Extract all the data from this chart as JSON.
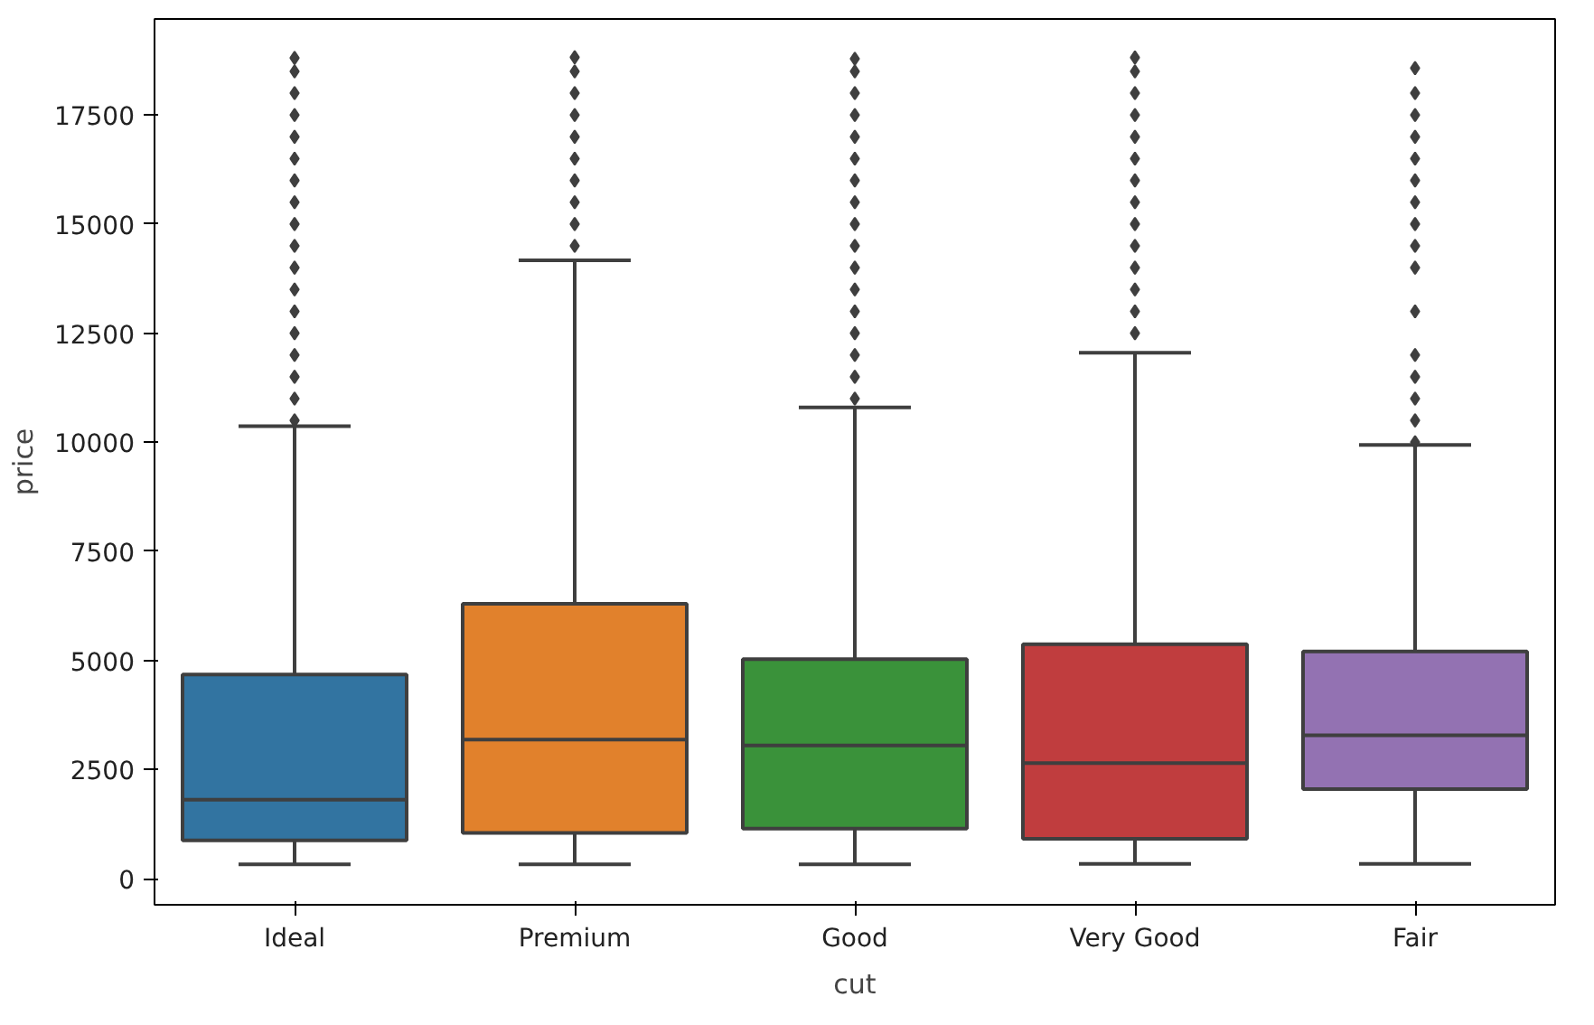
{
  "chart_data": {
    "type": "box",
    "xlabel": "cut",
    "ylabel": "price",
    "categories": [
      "Ideal",
      "Premium",
      "Good",
      "Very Good",
      "Fair"
    ],
    "colors": [
      "#3274a1",
      "#e1812c",
      "#3a923a",
      "#c03d3e",
      "#9372b2"
    ],
    "boxes": [
      {
        "low": 326,
        "q1": 878,
        "median": 1810,
        "q3": 4678,
        "high": 10370,
        "outliers": [
          10500,
          11000,
          11500,
          12000,
          12500,
          13000,
          13500,
          14000,
          14500,
          15000,
          15500,
          16000,
          16500,
          17000,
          17500,
          18000,
          18500,
          18806
        ]
      },
      {
        "low": 326,
        "q1": 1046,
        "median": 3185,
        "q3": 6296,
        "high": 14170,
        "outliers": [
          14500,
          15000,
          15500,
          16000,
          16500,
          17000,
          17500,
          18000,
          18500,
          18823
        ]
      },
      {
        "low": 327,
        "q1": 1145,
        "median": 3050,
        "q3": 5028,
        "high": 10800,
        "outliers": [
          11000,
          11500,
          12000,
          12500,
          13000,
          13500,
          14000,
          14500,
          15000,
          15500,
          16000,
          16500,
          17000,
          17500,
          18000,
          18500,
          18788
        ]
      },
      {
        "low": 336,
        "q1": 912,
        "median": 2648,
        "q3": 5373,
        "high": 12050,
        "outliers": [
          12500,
          13000,
          13500,
          14000,
          14500,
          15000,
          15500,
          16000,
          16500,
          17000,
          17500,
          18000,
          18500,
          18818
        ]
      },
      {
        "low": 337,
        "q1": 2050,
        "median": 3282,
        "q3": 5206,
        "high": 9940,
        "outliers": [
          10000,
          10500,
          11000,
          11500,
          12000,
          13000,
          14000,
          14500,
          15000,
          15500,
          16000,
          16500,
          17000,
          17500,
          18000,
          18574
        ]
      }
    ],
    "ylim": [
      -600,
      19700
    ],
    "yticks": [
      0,
      2500,
      5000,
      7500,
      10000,
      12500,
      15000,
      17500
    ],
    "grid": false,
    "marker": "diamond"
  }
}
